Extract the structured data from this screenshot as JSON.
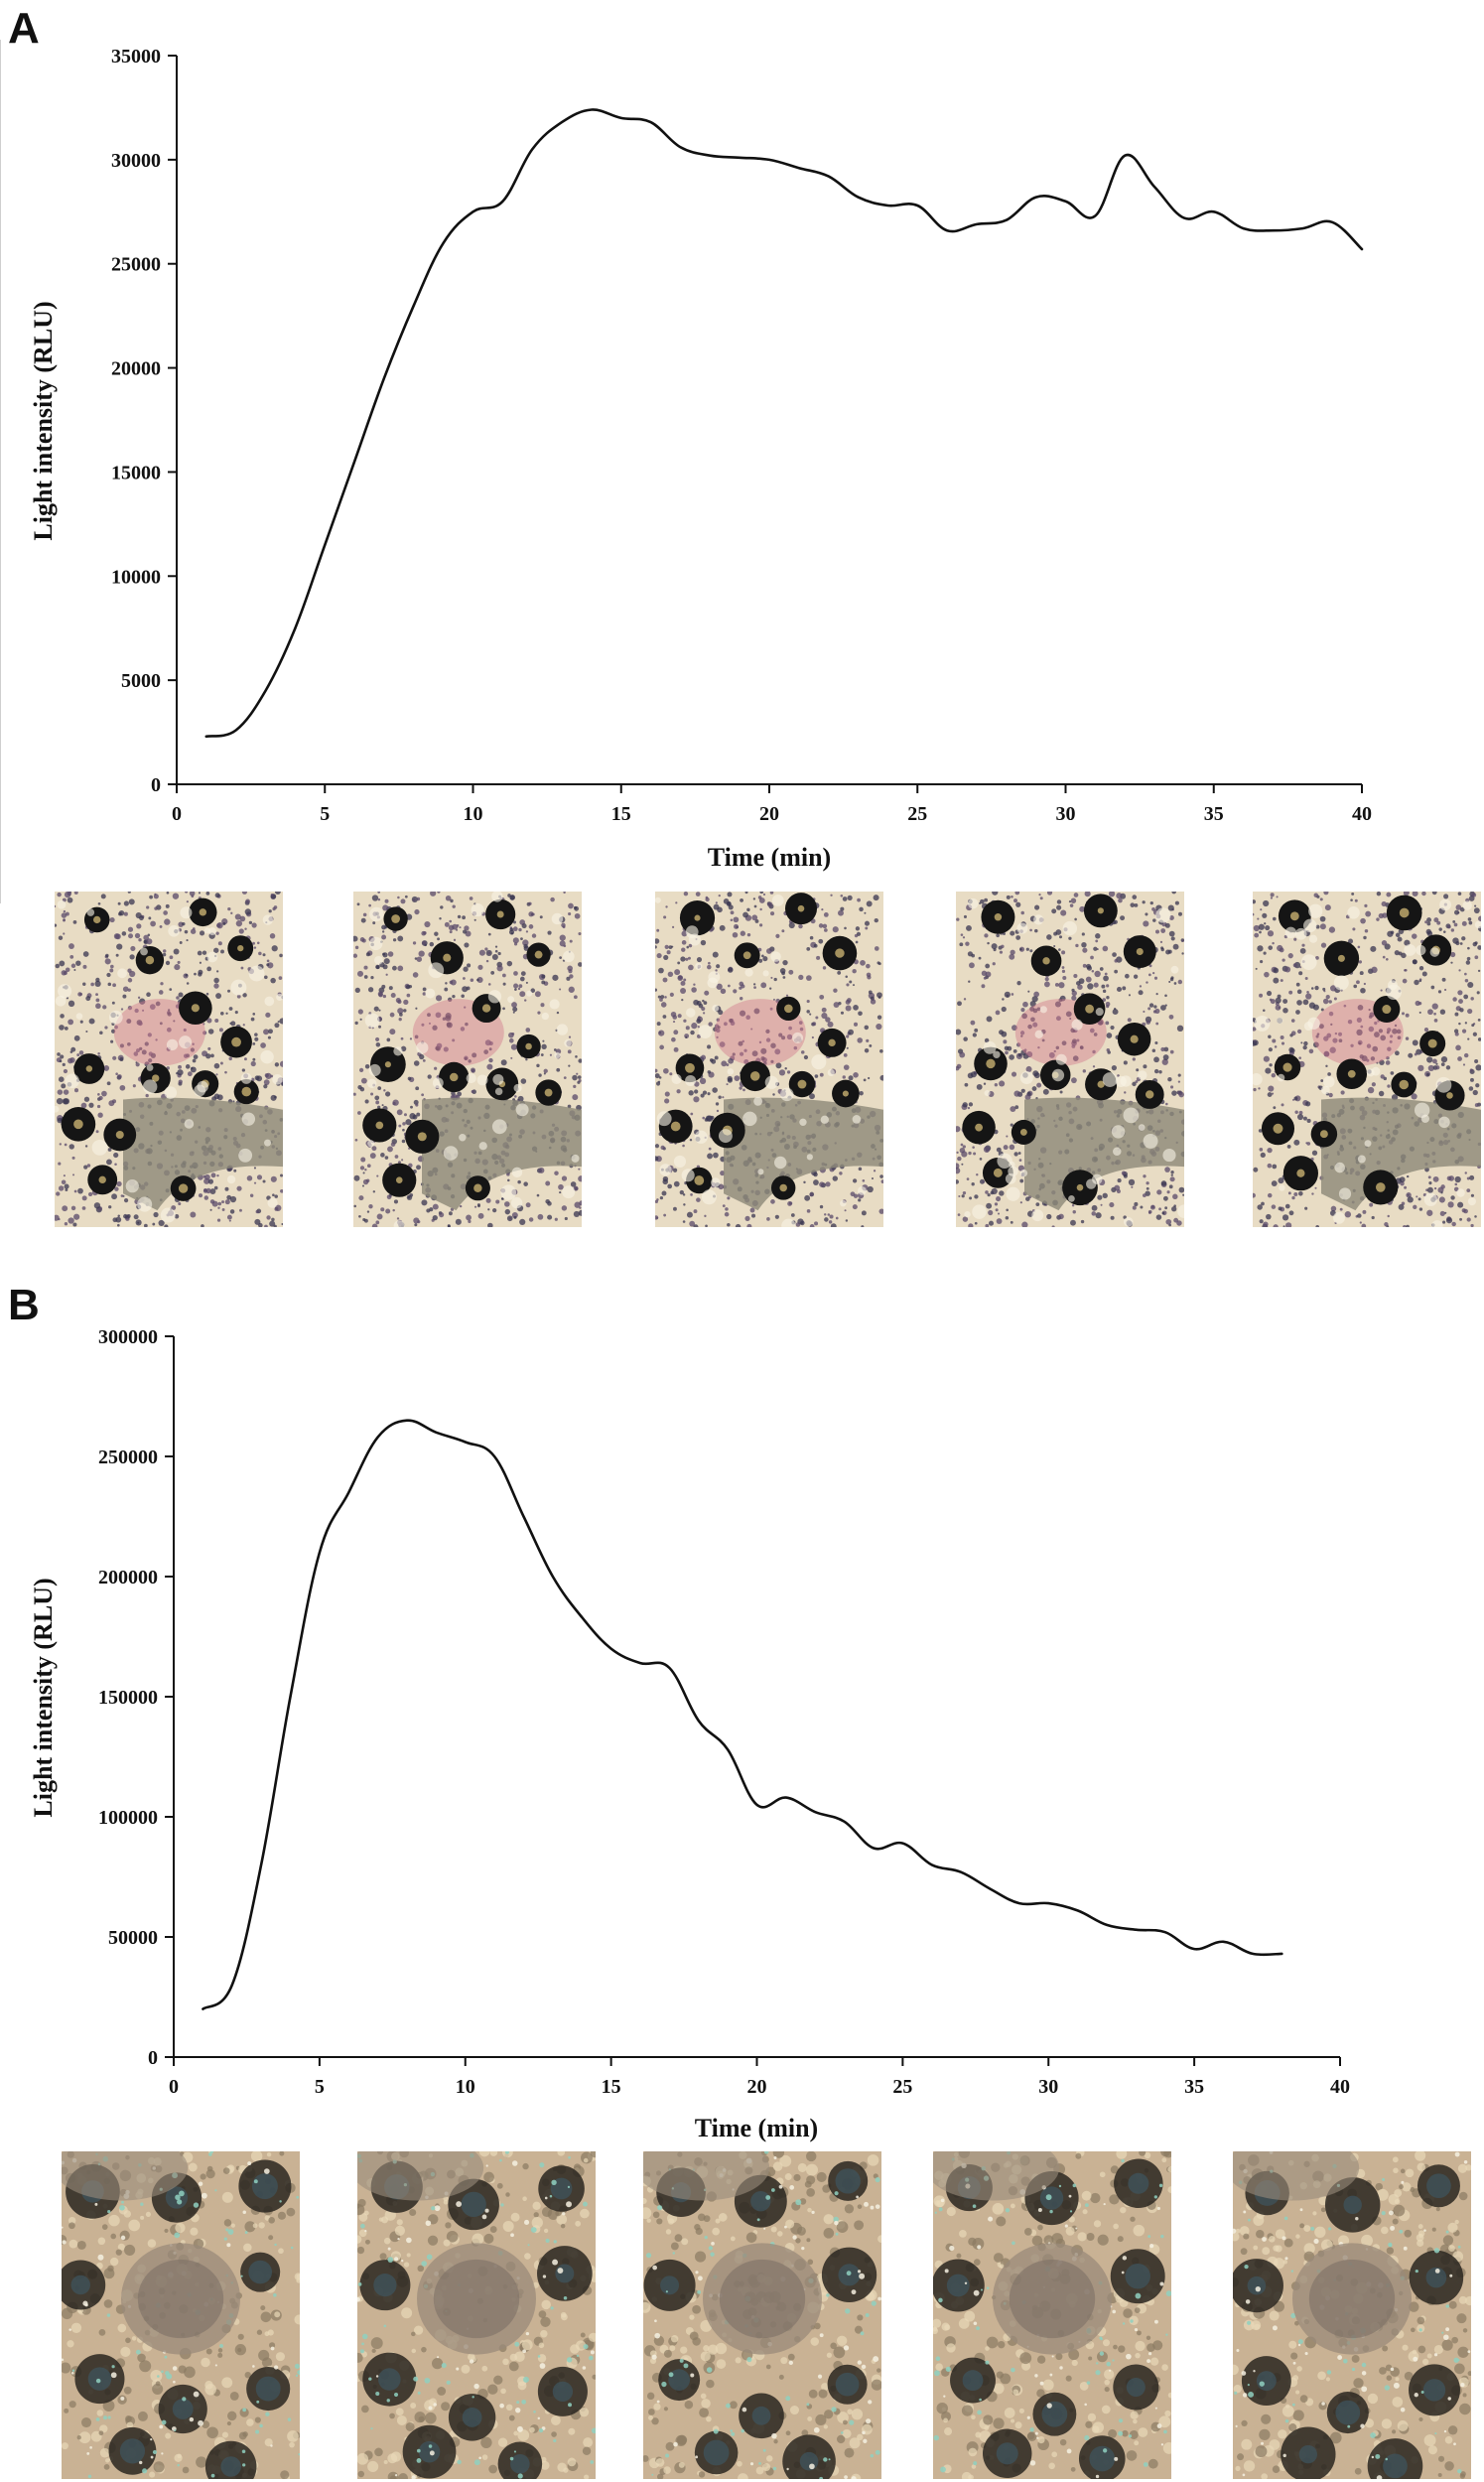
{
  "panels": [
    {
      "letter": "A"
    },
    {
      "letter": "B"
    }
  ],
  "chart_data": [
    {
      "type": "line",
      "panel": "A",
      "title": "",
      "xlabel": "Time (min)",
      "ylabel": "Light intensity (RLU)",
      "xlim": [
        0,
        40
      ],
      "ylim": [
        0,
        35000
      ],
      "xticks": [
        0,
        5,
        10,
        15,
        20,
        25,
        30,
        35,
        40
      ],
      "yticks": [
        0,
        5000,
        10000,
        15000,
        20000,
        25000,
        30000,
        35000
      ],
      "x": [
        1,
        2,
        3,
        4,
        5,
        6,
        7,
        8,
        9,
        10,
        11,
        12,
        13,
        14,
        15,
        16,
        17,
        18,
        19,
        20,
        21,
        22,
        23,
        24,
        25,
        26,
        27,
        28,
        29,
        30,
        31,
        32,
        33,
        34,
        35,
        36,
        37,
        38,
        39,
        40
      ],
      "series": [
        {
          "name": "Light intensity",
          "values": [
            2300,
            2600,
            4500,
            7500,
            11500,
            15500,
            19500,
            23000,
            26000,
            27500,
            28000,
            30500,
            31800,
            32400,
            32000,
            31800,
            30600,
            30200,
            30100,
            30000,
            29600,
            29200,
            28200,
            27800,
            27800,
            26600,
            26900,
            27100,
            28200,
            28000,
            27300,
            30200,
            28700,
            27200,
            27500,
            26700,
            26600,
            26700,
            27000,
            25700
          ]
        }
      ]
    },
    {
      "type": "line",
      "panel": "B",
      "title": "",
      "xlabel": "Time (min)",
      "ylabel": "Light intensity (RLU)",
      "xlim": [
        0,
        40
      ],
      "ylim": [
        0,
        300000
      ],
      "xticks": [
        0,
        5,
        10,
        15,
        20,
        25,
        30,
        35,
        40
      ],
      "yticks": [
        0,
        50000,
        100000,
        150000,
        200000,
        250000,
        300000
      ],
      "x": [
        1,
        2,
        3,
        4,
        5,
        6,
        7,
        8,
        9,
        10,
        11,
        12,
        13,
        14,
        15,
        16,
        17,
        18,
        19,
        20,
        21,
        22,
        23,
        24,
        25,
        26,
        27,
        28,
        29,
        30,
        31,
        32,
        33,
        34,
        35,
        36,
        37,
        38
      ],
      "series": [
        {
          "name": "Light intensity",
          "values": [
            20000,
            30000,
            80000,
            150000,
            210000,
            235000,
            258000,
            265000,
            260000,
            256000,
            250000,
            225000,
            200000,
            183000,
            170000,
            164000,
            162000,
            140000,
            128000,
            105000,
            108000,
            102000,
            98000,
            87000,
            89000,
            80000,
            77000,
            70000,
            64000,
            64000,
            61000,
            55000,
            53000,
            52000,
            45000,
            48000,
            43000,
            43000
          ]
        }
      ]
    }
  ],
  "photos": {
    "A": [
      "micrograph-a-1",
      "micrograph-a-2",
      "micrograph-a-3",
      "micrograph-a-4",
      "micrograph-a-5"
    ],
    "B": [
      "micrograph-b-1",
      "micrograph-b-2",
      "micrograph-b-3",
      "micrograph-b-4",
      "micrograph-b-5"
    ]
  },
  "colors": {
    "line": "#111111",
    "photo_a_bg": "#e8dcc4",
    "photo_b_bg": "#c9b294"
  }
}
